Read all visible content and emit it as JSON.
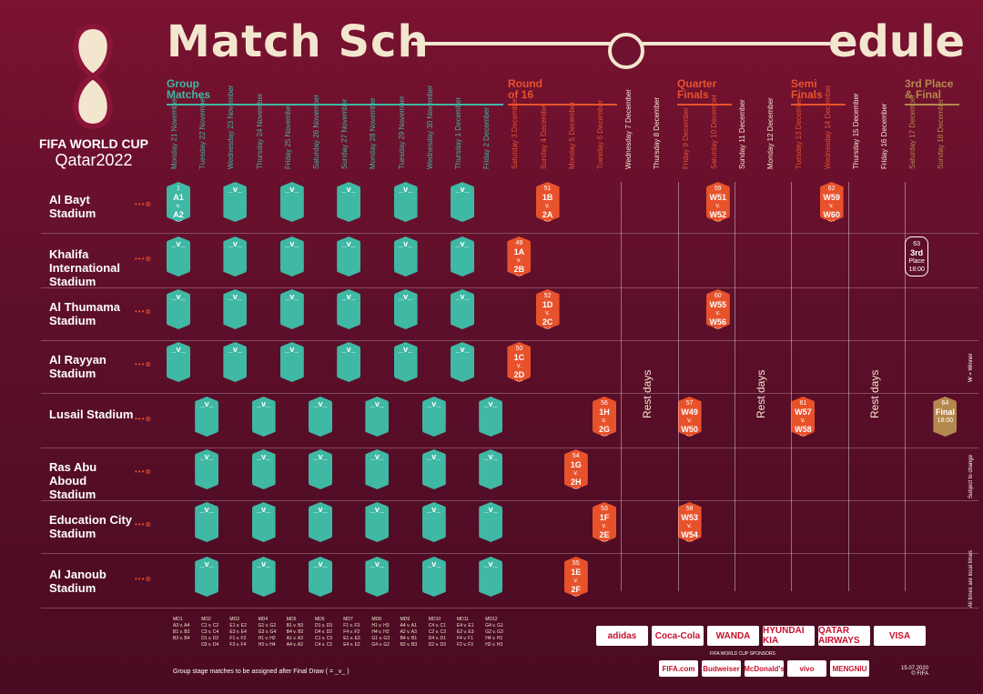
{
  "title_left": "Match Sch",
  "title_right": "edule",
  "brand_top": "FIFA WORLD CUP",
  "brand_sub": "Qatar2022",
  "phases": {
    "group": "Group\nMatches",
    "r16": "Round\nof 16",
    "qf": "Quarter\nFinals",
    "sf": "Semi\nFinals",
    "third": "3rd Place\n& Final"
  },
  "days": [
    "Monday 21 November",
    "Tuesday 22 November",
    "Wednesday 23 November",
    "Thursday 24 November",
    "Friday 25 November",
    "Saturday 26 November",
    "Sunday 27 November",
    "Monday 28 November",
    "Tuesday 29 November",
    "Wednesday 30 November",
    "Thursday 1 December",
    "Friday 2 December",
    "Saturday 3 December",
    "Sunday 4 December",
    "Monday 5 December",
    "Tuesday 6 December",
    "Wednesday 7 December",
    "Thursday 8 December",
    "Friday 9 December",
    "Saturday 10 December",
    "Sunday 11 December",
    "Monday 12 December",
    "Tuesday 13 December",
    "Wednesday 14 December",
    "Thursday 15 December",
    "Friday 16 December",
    "Saturday 17 December",
    "Sunday 18 December"
  ],
  "stadiums": [
    "Al Bayt Stadium",
    "Khalifa International Stadium",
    "Al Thumama Stadium",
    "Al Rayyan Stadium",
    "Lusail Stadium",
    "Ras Abu Aboud Stadium",
    "Education City Stadium",
    "Al Janoub Stadium"
  ],
  "rest_label": "Rest days",
  "side_notes": [
    "W = Winner",
    "Subject to change",
    "All times are local times"
  ],
  "footer_note": "Group stage matches to be assigned after Final Draw ( = _v_ )",
  "date_note": "15.07.2020\n© FIFA",
  "sponsors_top": [
    "adidas",
    "Coca-Cola",
    "WANDA",
    "HYUNDAI KIA",
    "QATAR AIRWAYS",
    "VISA"
  ],
  "sponsors_bottom": [
    "FIFA.com",
    "Budweiser",
    "McDonald's",
    "vivo",
    "MENGNIU"
  ],
  "sponsor_caption": "FIFA WORLD CUP SPONSORS",
  "md_labels": [
    "MD1",
    "MD2",
    "MD3",
    "MD4",
    "MD5",
    "MD6",
    "MD7",
    "MD8",
    "MD9",
    "MD10",
    "MD11",
    "MD12"
  ],
  "md_lines": [
    [
      "",
      "A3 v. A4",
      "B1 v. B2",
      "B3 v. B4"
    ],
    [
      "C1 v. C2",
      "C3 v. C4",
      "D1 v. D2",
      "D3 v. D4"
    ],
    [
      "E1 v. E2",
      "E3 v. E4",
      "F1 v. F2",
      "F3 v. F4"
    ],
    [
      "G1 v. G2",
      "G3 v. G4",
      "H1 v. H2",
      "H3 v. H4"
    ],
    [
      "B1 v. B3",
      "B4 v. B2",
      "A1 v. A3",
      "A4 v. A2"
    ],
    [
      "D1 v. D3",
      "D4 v. D2",
      "C1 v. C3",
      "C4 v. C2"
    ],
    [
      "F1 v. F3",
      "F4 v. F2",
      "E1 v. E3",
      "E4 v. E2"
    ],
    [
      "H1 v. H3",
      "H4 v. H2",
      "G1 v. G3",
      "G4 v. G2"
    ],
    [
      "A4 v. A1",
      "A2 v. A3",
      "B4 v. B1",
      "B2 v. B3"
    ],
    [
      "C4 v. C1",
      "C2 v. C3",
      "D4 v. D1",
      "D2 v. D3"
    ],
    [
      "E4 v. E1",
      "E2 v. E3",
      "F4 v. F1",
      "F2 v. F3"
    ],
    [
      "G4 v. G1",
      "G2 v. G3",
      "H4 v. H1",
      "H2 v. H3"
    ]
  ],
  "ko": {
    "m49": [
      "49",
      "1A",
      "v.",
      "2B",
      "22:00"
    ],
    "m50": [
      "50",
      "1C",
      "v.",
      "2D",
      "22:00"
    ],
    "m51": [
      "51",
      "1B",
      "v.",
      "2A",
      "22:00"
    ],
    "m52": [
      "52",
      "1D",
      "v.",
      "2C",
      "18:00"
    ],
    "m53": [
      "53",
      "1F",
      "v.",
      "2E",
      "18:00"
    ],
    "m54": [
      "54",
      "1G",
      "v.",
      "2H",
      "22:00"
    ],
    "m55": [
      "55",
      "1E",
      "v.",
      "2F",
      "18:00"
    ],
    "m56": [
      "56",
      "1H",
      "v.",
      "2G",
      "22:00"
    ],
    "m57": [
      "57",
      "W49",
      "v.",
      "W50",
      "22:00"
    ],
    "m58": [
      "58",
      "W53",
      "v.",
      "W54",
      "18:00"
    ],
    "m59": [
      "59",
      "W51",
      "v.",
      "W52",
      "22:00"
    ],
    "m60": [
      "60",
      "W55",
      "v.",
      "W56",
      "18:00"
    ],
    "m61": [
      "61",
      "W57",
      "v.",
      "W58",
      "22:00"
    ],
    "m62": [
      "62",
      "W59",
      "v.",
      "W60",
      "22:00"
    ],
    "m63": [
      "63",
      "3rd",
      "Place",
      "",
      "18:00"
    ],
    "m64": [
      "64",
      "Final",
      "",
      "",
      "18:00"
    ]
  },
  "opener": [
    "1",
    "A1",
    "v.",
    "A2",
    "19:00"
  ],
  "group_placeholder": "_v_"
}
